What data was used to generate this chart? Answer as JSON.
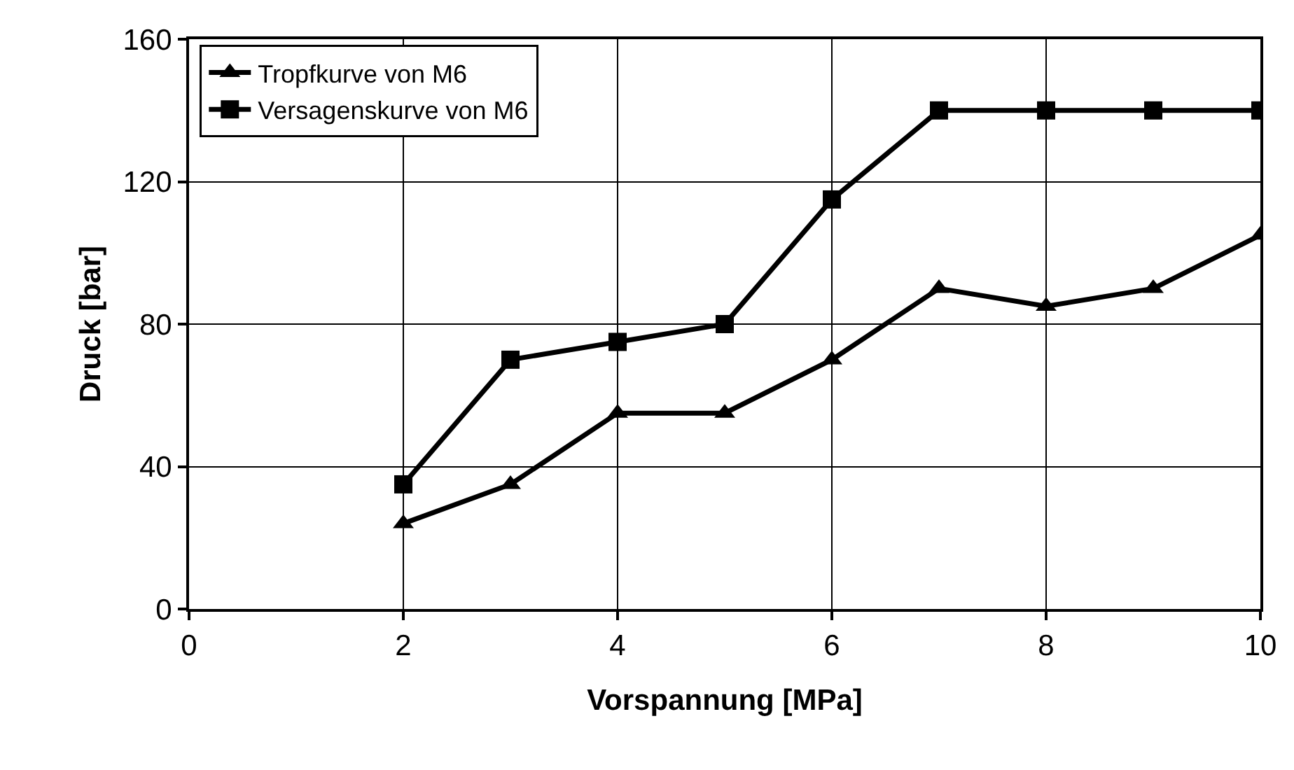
{
  "chart_data": {
    "type": "line",
    "xlabel": "Vorspannung [MPa]",
    "ylabel": "Druck [bar]",
    "x": [
      2,
      3,
      4,
      5,
      6,
      7,
      8,
      9,
      10
    ],
    "series": [
      {
        "name": "Tropfkurve von M6",
        "color": "#000000",
        "marker": "triangle",
        "values": [
          24,
          35,
          55,
          55,
          70,
          90,
          85,
          90,
          105
        ]
      },
      {
        "name": "Versagenskurve von M6",
        "color": "#000000",
        "marker": "square",
        "values": [
          35,
          70,
          75,
          80,
          115,
          140,
          140,
          140,
          140
        ]
      }
    ],
    "xlim": [
      0,
      10
    ],
    "xticks": [
      0,
      2,
      4,
      6,
      8,
      10
    ],
    "ylim": [
      0,
      160
    ],
    "yticks": [
      0,
      40,
      80,
      120,
      160
    ],
    "grid": true,
    "legend": "top left",
    "line_style": "solid"
  }
}
